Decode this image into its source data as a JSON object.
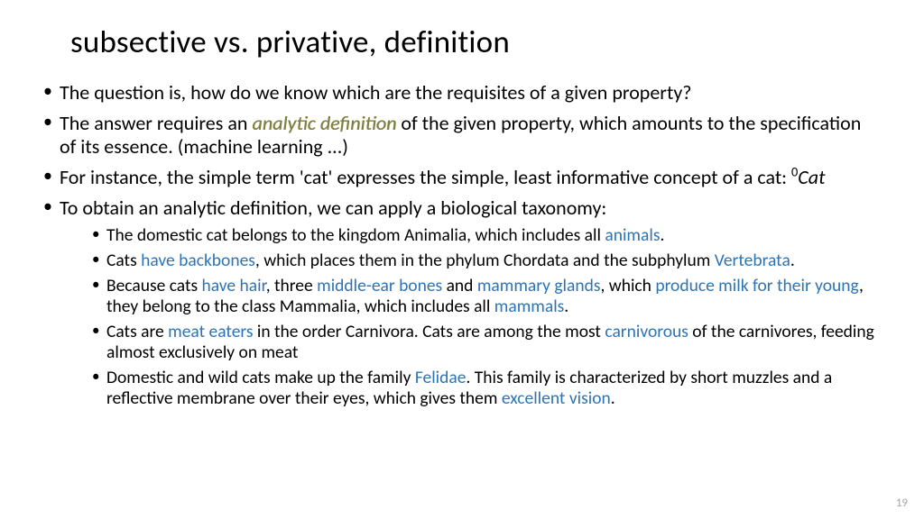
{
  "colors": {
    "background": "#ffffff",
    "text": "#000000",
    "link": "#2e74b5",
    "keyword": "#7f7f3f",
    "pagenum": "#a6a6a6"
  },
  "typography": {
    "title_fontsize": 35,
    "body_fontsize": 22,
    "sub_fontsize": 19.5,
    "pagenum_fontsize": 13,
    "font_family": "Calibri"
  },
  "title": "subsective vs. privative, definition",
  "b1": "The question is, how do we know which are the requisites of a given property?",
  "b2a": "The answer requires an ",
  "b2kw": "analytic definition",
  "b2b": " of the given property, which amounts to the specification of its essence. (machine learning ...)",
  "b3a": "For instance, the simple term 'cat' expresses the simple, least informative concept of a cat: ",
  "b3sup": "0",
  "b3ital": "Cat",
  "b4": "To obtain an analytic definition, we can apply a biological taxonomy:",
  "s1a": "The domestic cat belongs to the kingdom Animalia, which includes all ",
  "s1l1": "animals",
  "s1b": ".",
  "s2a": "Cats ",
  "s2l1": "have backbones",
  "s2b": ", which places them in the phylum Chordata and the subphylum ",
  "s2l2": "Vertebrata",
  "s2c": ".",
  "s3a": "Because cats ",
  "s3l1": "have hair",
  "s3b": ", three ",
  "s3l2": "middle-ear bones",
  "s3c": " and ",
  "s3l3": "mammary glands",
  "s3d": ", which ",
  "s3l4": "produce milk for their young",
  "s3e": ", they belong to the class Mammalia, which includes all ",
  "s3l5": "mammals",
  "s3f": ".",
  "s4a": "Cats are ",
  "s4l1": "meat eaters",
  "s4b": " in the order Carnivora. Cats are among the most ",
  "s4l2": "carnivorous",
  "s4c": " of the carnivores, feeding almost exclusively on meat",
  "s5a": "Domestic and wild cats make up the family ",
  "s5l1": "Felidae",
  "s5b": ". This family is characterized by short muzzles and a reflective membrane over their eyes, which gives them ",
  "s5l2": "excellent vision",
  "s5c": ".",
  "pagenum": "19"
}
